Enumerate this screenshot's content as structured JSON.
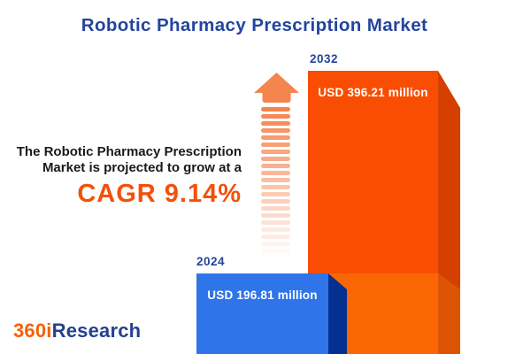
{
  "header": {
    "title": "Robotic Pharmacy Prescription Market"
  },
  "annotation": {
    "line1": "The Robotic Pharmacy Prescription",
    "line2": "Market is projected to grow at a",
    "cagr_label": "CAGR 9.14%"
  },
  "chart_data": {
    "type": "bar",
    "title": "Robotic Pharmacy Prescription Market",
    "categories": [
      "2024",
      "2032"
    ],
    "values": [
      196.81,
      396.21
    ],
    "value_labels": [
      "USD 196.81 million",
      "USD 396.21 million"
    ],
    "unit": "USD million",
    "cagr_percent": 9.14,
    "legend_position": "none",
    "grid": false,
    "colors": {
      "bar_2024_front": "#2F74E8",
      "bar_2024_side": "#05308F",
      "bar_2032_front": "#F84D02",
      "bar_2032_side": "#D54000",
      "bar_2032_base_front": "#FB6605",
      "bar_2032_base_side": "#DD5504",
      "growth_arrow": "#F5854E",
      "accent_orange": "#F4500A",
      "accent_blue": "#24459E"
    }
  },
  "footer": {
    "logo_prefix": "360i",
    "logo_suffix": "Research"
  }
}
